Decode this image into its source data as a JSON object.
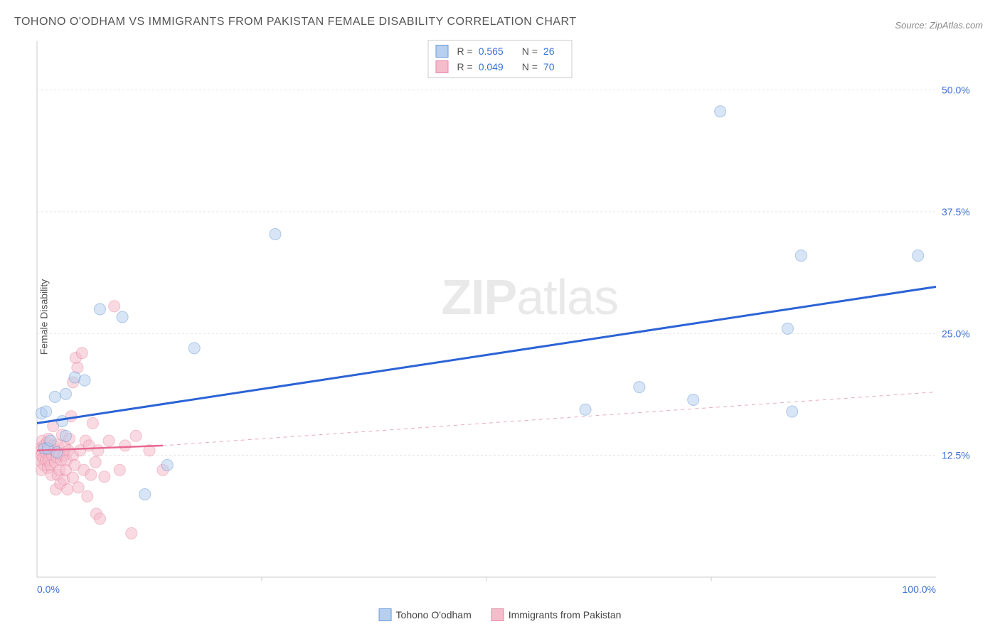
{
  "title": "TOHONO O'ODHAM VS IMMIGRANTS FROM PAKISTAN FEMALE DISABILITY CORRELATION CHART",
  "source": "Source: ZipAtlas.com",
  "y_axis_label": "Female Disability",
  "watermark": {
    "bold": "ZIP",
    "light": "atlas"
  },
  "chart": {
    "type": "scatter",
    "xlim": [
      0,
      100
    ],
    "ylim": [
      0,
      55
    ],
    "x_ticks": [
      {
        "value": 0,
        "label": "0.0%"
      },
      {
        "value": 100,
        "label": "100.0%"
      }
    ],
    "x_minor_ticks": [
      25,
      50,
      75
    ],
    "y_ticks": [
      {
        "value": 12.5,
        "label": "12.5%"
      },
      {
        "value": 25.0,
        "label": "25.0%"
      },
      {
        "value": 37.5,
        "label": "37.5%"
      },
      {
        "value": 50.0,
        "label": "50.0%"
      }
    ],
    "background_color": "#ffffff",
    "grid_color": "#e4e4e4",
    "grid_dash": "3,3",
    "axis_color": "#cccccc",
    "tick_label_color": "#3b6fd6",
    "tick_label_fontsize": 14,
    "marker_radius": 8,
    "marker_opacity": 0.55,
    "series": [
      {
        "name": "Tohono O'odham",
        "fill": "#b7d0ef",
        "stroke": "#6a9bd8",
        "points": [
          [
            0.5,
            16.8
          ],
          [
            0.8,
            13.2
          ],
          [
            1.0,
            17.0
          ],
          [
            1.2,
            13.2
          ],
          [
            1.5,
            14.0
          ],
          [
            2.0,
            18.5
          ],
          [
            2.2,
            12.8
          ],
          [
            2.8,
            16.0
          ],
          [
            3.2,
            14.5
          ],
          [
            3.2,
            18.8
          ],
          [
            4.2,
            20.5
          ],
          [
            5.3,
            20.2
          ],
          [
            7.0,
            27.5
          ],
          [
            9.5,
            26.7
          ],
          [
            12.0,
            8.5
          ],
          [
            14.5,
            11.5
          ],
          [
            17.5,
            23.5
          ],
          [
            26.5,
            35.2
          ],
          [
            61.0,
            17.2
          ],
          [
            67.0,
            19.5
          ],
          [
            73.0,
            18.2
          ],
          [
            76.0,
            47.8
          ],
          [
            83.5,
            25.5
          ],
          [
            84.0,
            17.0
          ],
          [
            85.0,
            33.0
          ],
          [
            98.0,
            33.0
          ]
        ],
        "trend": {
          "x1": 0,
          "y1": 15.8,
          "x2": 100,
          "y2": 29.8,
          "color": "#2b63d6",
          "width": 3,
          "dash": ""
        },
        "R": "0.565",
        "N": "26"
      },
      {
        "name": "Immigrants from Pakistan",
        "fill": "#f5bccb",
        "stroke": "#e88aa5",
        "points": [
          [
            0.2,
            13.2
          ],
          [
            0.3,
            12.0
          ],
          [
            0.4,
            13.0
          ],
          [
            0.5,
            11.0
          ],
          [
            0.5,
            12.5
          ],
          [
            0.6,
            14.0
          ],
          [
            0.7,
            12.2
          ],
          [
            0.8,
            11.5
          ],
          [
            0.8,
            13.5
          ],
          [
            1.0,
            12.0
          ],
          [
            1.0,
            12.8
          ],
          [
            1.1,
            13.8
          ],
          [
            1.2,
            11.2
          ],
          [
            1.2,
            13.0
          ],
          [
            1.3,
            12.0
          ],
          [
            1.3,
            14.2
          ],
          [
            1.5,
            11.5
          ],
          [
            1.5,
            13.2
          ],
          [
            1.6,
            10.5
          ],
          [
            1.7,
            12.5
          ],
          [
            1.8,
            13.5
          ],
          [
            1.8,
            15.5
          ],
          [
            2.0,
            11.8
          ],
          [
            2.0,
            13.0
          ],
          [
            2.1,
            9.0
          ],
          [
            2.2,
            12.3
          ],
          [
            2.3,
            10.5
          ],
          [
            2.3,
            13.6
          ],
          [
            2.5,
            11.0
          ],
          [
            2.5,
            12.6
          ],
          [
            2.6,
            9.6
          ],
          [
            2.7,
            12.0
          ],
          [
            2.8,
            14.6
          ],
          [
            3.0,
            10.0
          ],
          [
            3.0,
            12.5
          ],
          [
            3.1,
            13.4
          ],
          [
            3.2,
            11.0
          ],
          [
            3.3,
            12.0
          ],
          [
            3.4,
            9.0
          ],
          [
            3.5,
            13.0
          ],
          [
            3.6,
            14.2
          ],
          [
            3.8,
            16.5
          ],
          [
            4.0,
            10.2
          ],
          [
            4.0,
            12.5
          ],
          [
            4.0,
            20.0
          ],
          [
            4.2,
            11.5
          ],
          [
            4.3,
            22.5
          ],
          [
            4.5,
            21.5
          ],
          [
            4.6,
            9.2
          ],
          [
            4.8,
            13.0
          ],
          [
            5.0,
            23.0
          ],
          [
            5.2,
            11.0
          ],
          [
            5.4,
            14.0
          ],
          [
            5.6,
            8.3
          ],
          [
            5.8,
            13.5
          ],
          [
            6.0,
            10.5
          ],
          [
            6.2,
            15.8
          ],
          [
            6.5,
            11.8
          ],
          [
            6.6,
            6.5
          ],
          [
            6.8,
            13.0
          ],
          [
            7.0,
            6.0
          ],
          [
            7.5,
            10.3
          ],
          [
            8.0,
            14.0
          ],
          [
            8.6,
            27.8
          ],
          [
            9.2,
            11.0
          ],
          [
            9.8,
            13.5
          ],
          [
            10.5,
            4.5
          ],
          [
            11.0,
            14.5
          ],
          [
            12.5,
            13.0
          ],
          [
            14.0,
            11.0
          ]
        ],
        "trend_solid": {
          "x1": 0,
          "y1": 13.0,
          "x2": 14,
          "y2": 13.5,
          "color": "#e86891",
          "width": 2.5
        },
        "trend_dashed": {
          "x1": 14,
          "y1": 13.5,
          "x2": 100,
          "y2": 19.0,
          "color": "#e8a9bb",
          "width": 1,
          "dash": "5,5"
        },
        "R": "0.049",
        "N": "70"
      }
    ]
  },
  "legend_top": {
    "border_color": "#cccccc",
    "swatch_size": 18
  },
  "legend_bottom": [
    {
      "label": "Tohono O'odham",
      "fill": "#b7d0ef",
      "stroke": "#6a9bd8"
    },
    {
      "label": "Immigrants from Pakistan",
      "fill": "#f5bccb",
      "stroke": "#e88aa5"
    }
  ]
}
